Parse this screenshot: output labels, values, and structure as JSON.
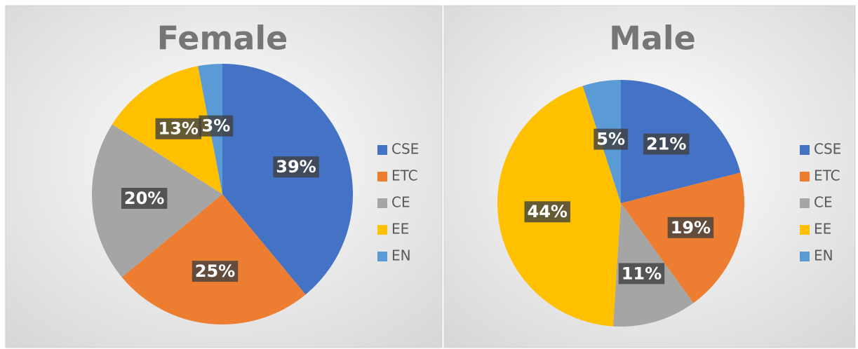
{
  "chart_data": [
    {
      "type": "pie",
      "title": "Female",
      "categories": [
        "CSE",
        "ETC",
        "CE",
        "EE",
        "EN"
      ],
      "values": [
        39,
        25,
        20,
        13,
        3
      ],
      "value_labels": [
        "39%",
        "25%",
        "20%",
        "13%",
        "3%"
      ],
      "colors": [
        "#4472c4",
        "#ed7d31",
        "#a5a5a5",
        "#ffc000",
        "#5b9bd5"
      ],
      "legend": "right"
    },
    {
      "type": "pie",
      "title": "Male",
      "categories": [
        "CSE",
        "ETC",
        "CE",
        "EE",
        "EN"
      ],
      "values": [
        21,
        19,
        11,
        44,
        5
      ],
      "value_labels": [
        "21%",
        "19%",
        "11%",
        "44%",
        "5%"
      ],
      "colors": [
        "#4472c4",
        "#ed7d31",
        "#a5a5a5",
        "#ffc000",
        "#5b9bd5"
      ],
      "legend": "right"
    }
  ]
}
